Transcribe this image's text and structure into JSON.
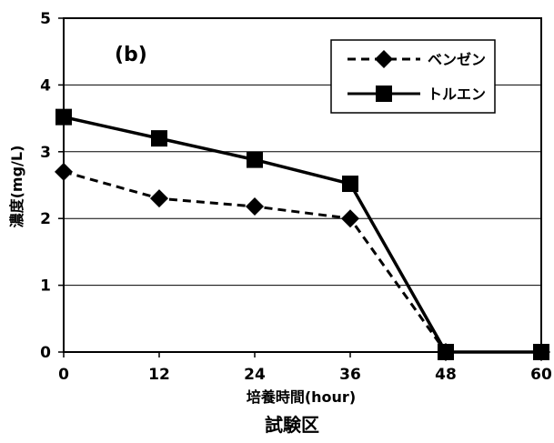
{
  "chart_data": {
    "type": "line",
    "panel_label": "(b)",
    "ylabel": "濃度(mg/L)",
    "xlabel": "培養時間(hour)",
    "footer": "試験区",
    "x": [
      0,
      12,
      24,
      36,
      48,
      60
    ],
    "x_ticks": [
      "0",
      "12",
      "24",
      "36",
      "48",
      "60"
    ],
    "y_ticks": [
      "0",
      "1",
      "2",
      "3",
      "4",
      "5"
    ],
    "xlim": [
      0,
      60
    ],
    "ylim": [
      0,
      5
    ],
    "grid": "horizontal",
    "legend_position": "top-right",
    "series": [
      {
        "name": "ベンゼン",
        "values": [
          2.7,
          2.3,
          2.18,
          2.0,
          0.0,
          0.0
        ],
        "marker": "diamond",
        "line_style": "dashed",
        "color": "#000000"
      },
      {
        "name": "トルエン",
        "values": [
          3.52,
          3.2,
          2.88,
          2.52,
          0.0,
          0.0
        ],
        "marker": "square",
        "line_style": "solid",
        "color": "#000000"
      }
    ]
  }
}
